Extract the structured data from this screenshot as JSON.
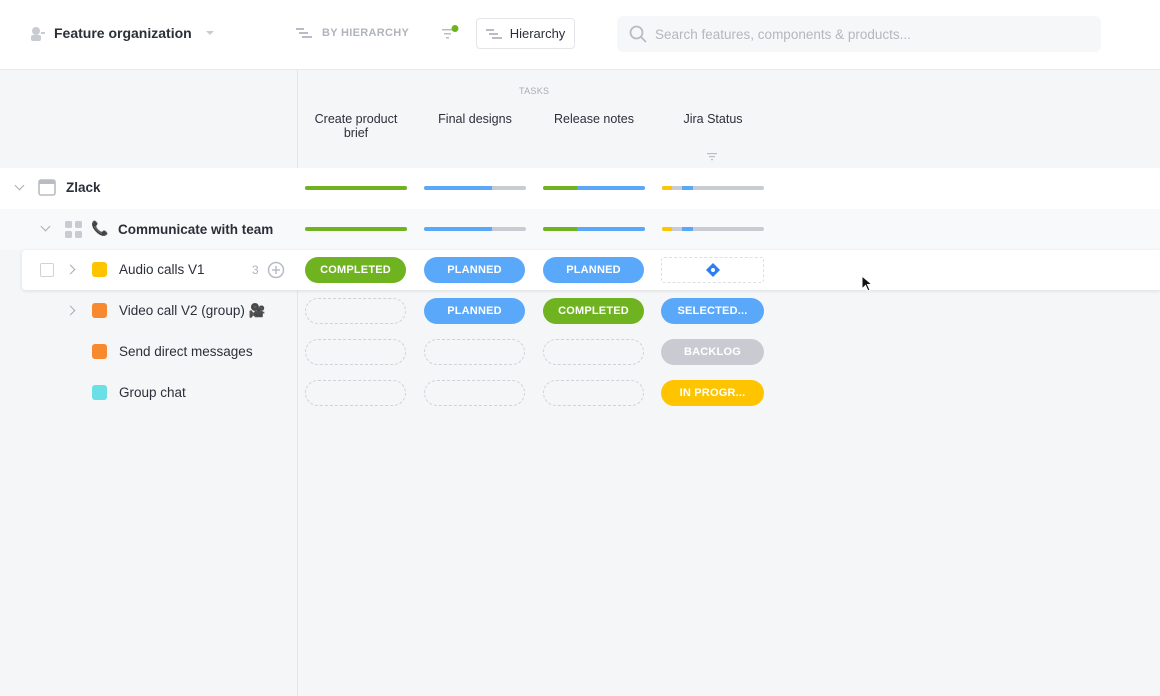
{
  "header": {
    "workspace": "Feature organization",
    "group_by": "BY HIERARCHY",
    "view_button": "Hierarchy",
    "search_placeholder": "Search features, components & products..."
  },
  "columns": {
    "group_label": "TASKS",
    "items": [
      "Create product brief",
      "Final designs",
      "Release notes",
      "Jira Status"
    ]
  },
  "colors": {
    "completed": "#6fb320",
    "planned": "#5aa8fa",
    "backlog": "#c8ccd2",
    "in_progress": "#ffc400"
  },
  "rows": [
    {
      "name": "Zlack",
      "level": "product",
      "progress": [
        {
          "green": 1.0
        },
        {
          "blue": 0.67
        },
        {
          "green": 0.33,
          "blue": 0.67
        },
        {
          "yellow": 0.1,
          "blue_start": 0.2,
          "blue": 0.1
        }
      ]
    },
    {
      "name": "Communicate with team",
      "level": "component",
      "progress": [
        {
          "green": 1.0
        },
        {
          "blue": 0.67
        },
        {
          "green": 0.33,
          "blue": 0.67
        },
        {
          "yellow": 0.1,
          "blue_start": 0.2,
          "blue": 0.1
        }
      ]
    },
    {
      "name": "Audio calls V1",
      "color": "#ffc400",
      "count": "3",
      "cells": [
        "COMPLETED",
        "PLANNED",
        "PLANNED",
        ""
      ]
    },
    {
      "name": "Video call V2 (group) 🎥",
      "color": "#f78a2e",
      "cells": [
        "",
        "PLANNED",
        "COMPLETED",
        "SELECTED..."
      ]
    },
    {
      "name": "Send direct messages",
      "color": "#f78a2e",
      "cells": [
        "",
        "",
        "",
        "BACKLOG"
      ]
    },
    {
      "name": "Group chat",
      "color": "#6ae0e6",
      "cells": [
        "",
        "",
        "",
        "IN PROGR..."
      ]
    }
  ]
}
